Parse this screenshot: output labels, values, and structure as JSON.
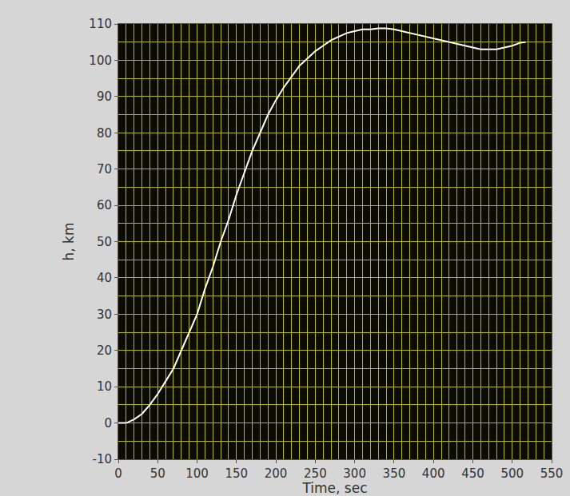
{
  "chart_data": {
    "type": "line",
    "xlabel": "Time, sec",
    "ylabel": "h, km",
    "x": [
      0,
      10,
      20,
      30,
      40,
      50,
      60,
      70,
      80,
      90,
      100,
      110,
      120,
      130,
      140,
      150,
      160,
      170,
      180,
      190,
      200,
      210,
      220,
      230,
      240,
      250,
      260,
      270,
      280,
      290,
      300,
      310,
      320,
      330,
      340,
      350,
      360,
      370,
      380,
      390,
      400,
      410,
      420,
      430,
      440,
      450,
      460,
      470,
      480,
      490,
      500,
      510,
      517
    ],
    "values": [
      0,
      0,
      1,
      2.5,
      5,
      8,
      11.5,
      15,
      20,
      25,
      30,
      37,
      43,
      50,
      56,
      63,
      69,
      75,
      80,
      85,
      89,
      92.5,
      95.5,
      98.5,
      100.5,
      102.5,
      104,
      105.5,
      106.5,
      107.5,
      108,
      108.5,
      108.5,
      108.8,
      108.8,
      108.5,
      108,
      107.5,
      107,
      106.5,
      106,
      105.5,
      105,
      104.5,
      104,
      103.5,
      103,
      103,
      103,
      103.5,
      104,
      104.8,
      105
    ],
    "color": "#ffffff",
    "xlim": [
      0,
      550
    ],
    "ylim": [
      -10,
      110
    ],
    "xticks": [
      0,
      50,
      100,
      150,
      200,
      250,
      300,
      350,
      400,
      450,
      500,
      550
    ],
    "yticks": [
      -10,
      0,
      10,
      20,
      30,
      40,
      50,
      60,
      70,
      80,
      90,
      100,
      110
    ],
    "grid": true
  }
}
